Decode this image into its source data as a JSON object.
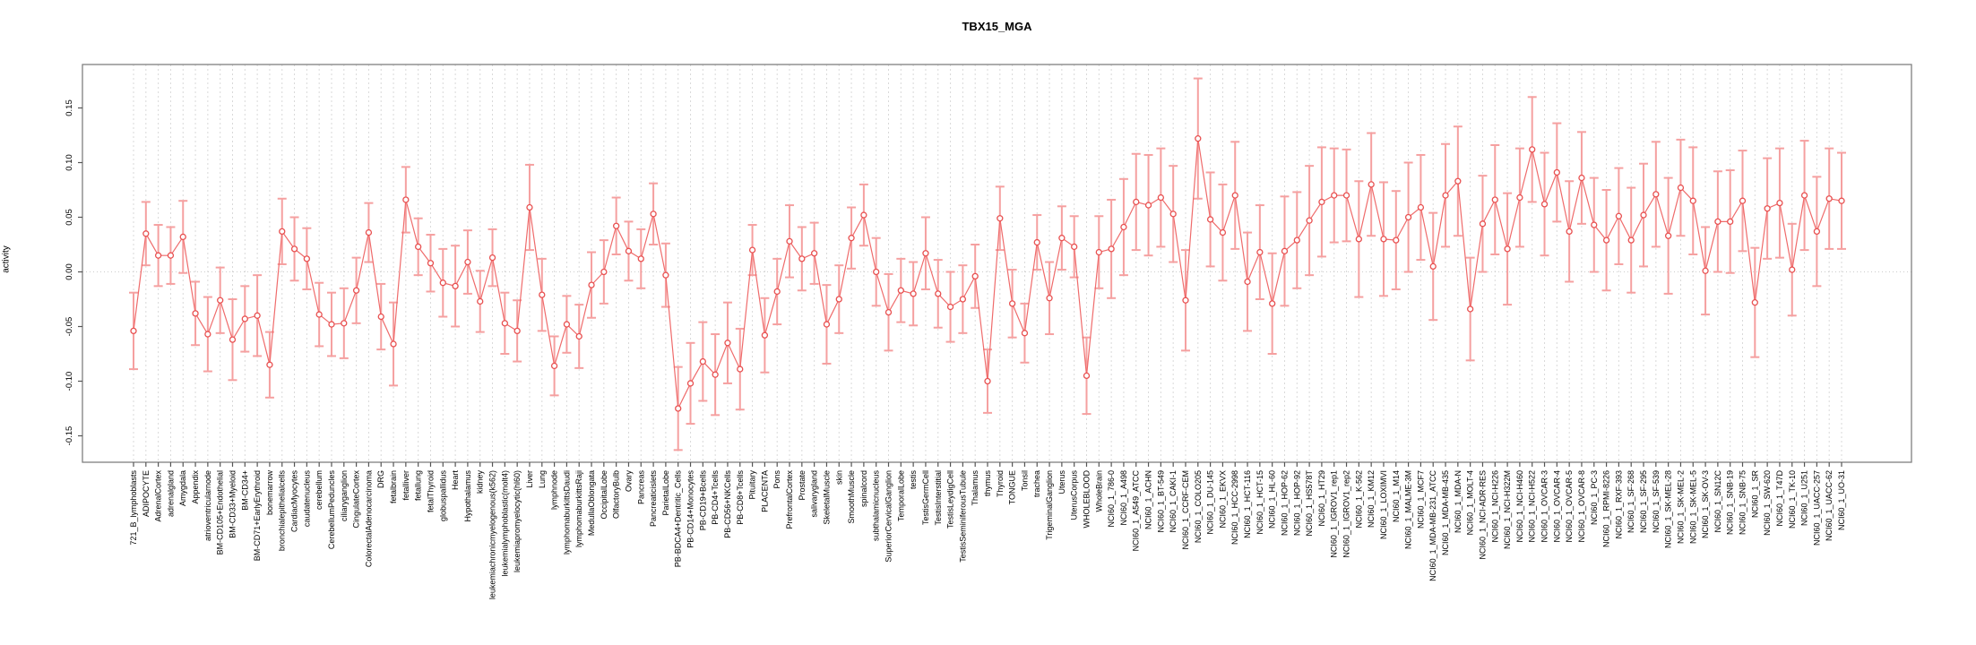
{
  "title": "TBX15_MGA",
  "ylabel": "activity",
  "chart_data": {
    "type": "scatter",
    "title": "TBX15_MGA",
    "xlabel": "",
    "ylabel": "activity",
    "ylim": [
      -0.175,
      0.19
    ],
    "yticks": [
      -0.15,
      -0.1,
      -0.05,
      0.0,
      0.05,
      0.1,
      0.15
    ],
    "grid": "vertical dashed gridline at every category; dotted horizontal line at 0",
    "legend_position": "none",
    "marker": "open-circle with connecting line and error bars",
    "point_color": "#e85151",
    "line_color": "#ef6b6b",
    "errorbar_color": "#f5a0a0",
    "box_color": "#808080",
    "gridline_color": "#d9d9d9",
    "categories": [
      "721_B_lymphoblasts",
      "ADIPOCYTE",
      "AdrenalCortex",
      "adrenalgland",
      "Amygdala",
      "Appendix",
      "atrioventricularnode",
      "BM-CD105+Endothelial",
      "BM-CD33+Myeloid",
      "BM-CD34+",
      "BM-CD71+EarlyErythroid",
      "bonemarrow",
      "bronchialepithelialcells",
      "CardiacMyocytes",
      "caudatenucleus",
      "cerebellum",
      "CerebellumPeduncles",
      "ciliaryganglion",
      "CingulateCortex",
      "ColorectalAdenocarcinoma",
      "DRG",
      "fetalbrain",
      "fetalliver",
      "fetallung",
      "fetalThyroid",
      "globuspallidus",
      "Heart",
      "Hypothalamus",
      "kidney",
      "leukemiachronicmyelogenous(k562)",
      "leukemialymphoblastic(molt4)",
      "leukemiapromyelocytic(hl60)",
      "Liver",
      "Lung",
      "lymphnode",
      "lymphomaburkittsDaudi",
      "lymphomaburkittsRaji",
      "MedullaOblongata",
      "OccipitalLobe",
      "OlfactoryBulb",
      "Ovary",
      "Pancreas",
      "Pancreaticislets",
      "ParietalLobe",
      "PB-BDCA4+Dentritic_Cells",
      "PB-CD14+Monocytes",
      "PB-CD19+Bcells",
      "PB-CD4+Tcells",
      "PB-CD56+NKCells",
      "PB-CD8+Tcells",
      "Pituitary",
      "PLACENTA",
      "Pons",
      "PrefrontalCortex",
      "Prostate",
      "salivarygland",
      "SkeletalMuscle",
      "skin",
      "SmoothMuscle",
      "spinalcord",
      "subthalamicnucleus",
      "SuperiorCervicalGanglion",
      "TemporalLobe",
      "testis",
      "TestisGermCell",
      "TestisInterstitial",
      "TestisLeydigCell",
      "TestisSeminiferousTubule",
      "Thalamus",
      "thymus",
      "Thyroid",
      "TONGUE",
      "Tonsil",
      "trachea",
      "TrigeminalGanglion",
      "Uterus",
      "UterusCorpus",
      "WHOLEBLOOD",
      "WholeBrain",
      "NCI60_1_786-0",
      "NCI60_1_A498",
      "NCI60_1_A549_ATCC",
      "NCI60_1_ACHN",
      "NCI60_1_BT-549",
      "NCI60_1_CAKI-1",
      "NCI60_1_CCRF-CEM",
      "NCI60_1_COLO205",
      "NCI60_1_DU-145",
      "NCI60_1_EKVX",
      "NCI60_1_HCC-2998",
      "NCI60_1_HCT-116",
      "NCI60_1_HCT-15",
      "NCI60_1_HL-60",
      "NCI60_1_HOP-62",
      "NCI60_1_HOP-92",
      "NCI60_1_HS578T",
      "NCI60_1_HT29",
      "NCI60_1_IGROV1_rep1",
      "NCI60_1_IGROV1_rep2",
      "NCI60_1_K-562",
      "NCI60_1_KM12",
      "NCI60_1_LOXIMVI",
      "NCI60_1_M14",
      "NCI60_1_MALME-3M",
      "NCI60_1_MCF7",
      "NCI60_1_MDA-MB-231_ATCC",
      "NCI60_1_MDA-MB-435",
      "NCI60_1_MDA-N",
      "NCI60_1_MOLT-4",
      "NCI60_1_NCI-ADR-RES",
      "NCI60_1_NCI-H226",
      "NCI60_1_NCI-H322M",
      "NCI60_1_NCI-H460",
      "NCI60_1_NCI-H522",
      "NCI60_1_OVCAR-3",
      "NCI60_1_OVCAR-4",
      "NCI60_1_OVCAR-5",
      "NCI60_1_OVCAR-8",
      "NCI60_1_PC-3",
      "NCI60_1_RPMI-8226",
      "NCI60_1_RXF-393",
      "NCI60_1_SF-268",
      "NCI60_1_SF-295",
      "NCI60_1_SF-539",
      "NCI60_1_SK-MEL-28",
      "NCI60_1_SK-MEL-2",
      "NCI60_1_SK-MEL-5",
      "NCI60_1_SK-OV-3",
      "NCI60_1_SN12C",
      "NCI60_1_SNB-19",
      "NCI60_1_SNB-75",
      "NCI60_1_SR",
      "NCI60_1_SW-620",
      "NCI60_1_T47D",
      "NCI60_1_TK-10",
      "NCI60_1_U251",
      "NCI60_1_UACC-257",
      "NCI60_1_UACC-62",
      "NCI60_1_UO-31"
    ],
    "values": [
      -0.054,
      0.035,
      0.015,
      0.015,
      0.032,
      -0.038,
      -0.057,
      -0.026,
      -0.062,
      -0.043,
      -0.04,
      -0.085,
      0.037,
      0.021,
      0.012,
      -0.039,
      -0.048,
      -0.047,
      -0.017,
      0.036,
      -0.041,
      -0.066,
      0.066,
      0.023,
      0.008,
      -0.01,
      -0.013,
      0.009,
      -0.027,
      0.013,
      -0.047,
      -0.054,
      0.059,
      -0.021,
      -0.086,
      -0.048,
      -0.059,
      -0.012,
      0.0,
      0.042,
      0.019,
      0.012,
      0.053,
      -0.003,
      -0.125,
      -0.102,
      -0.082,
      -0.094,
      -0.065,
      -0.089,
      0.02,
      -0.058,
      -0.018,
      0.028,
      0.012,
      0.017,
      -0.048,
      -0.025,
      0.031,
      0.052,
      0.0,
      -0.037,
      -0.017,
      -0.02,
      0.017,
      -0.02,
      -0.032,
      -0.025,
      -0.004,
      -0.1,
      0.049,
      -0.029,
      -0.056,
      0.027,
      -0.024,
      0.031,
      0.023,
      -0.095,
      0.018,
      0.021,
      0.041,
      0.064,
      0.061,
      0.068,
      0.053,
      -0.026,
      0.122,
      0.048,
      0.036,
      0.07,
      -0.009,
      0.018,
      -0.029,
      0.019,
      0.029,
      0.047,
      0.064,
      0.07,
      0.07,
      0.03,
      0.08,
      0.03,
      0.029,
      0.05,
      0.059,
      0.005,
      0.07,
      0.083,
      -0.034,
      0.044,
      0.066,
      0.021,
      0.068,
      0.112,
      0.062,
      0.091,
      0.037,
      0.086,
      0.043,
      0.029,
      0.051,
      0.029,
      0.052,
      0.071,
      0.033,
      0.077,
      0.065,
      0.001,
      0.046,
      0.046,
      0.065,
      -0.028,
      0.058,
      0.063,
      0.002,
      0.07,
      0.037,
      0.067,
      0.065
    ],
    "errors": [
      0.035,
      0.029,
      0.028,
      0.026,
      0.033,
      0.029,
      0.034,
      0.03,
      0.037,
      0.03,
      0.037,
      0.03,
      0.03,
      0.029,
      0.028,
      0.029,
      0.029,
      0.032,
      0.03,
      0.027,
      0.03,
      0.038,
      0.03,
      0.026,
      0.026,
      0.031,
      0.037,
      0.029,
      0.028,
      0.026,
      0.028,
      0.028,
      0.039,
      0.033,
      0.027,
      0.026,
      0.029,
      0.03,
      0.029,
      0.026,
      0.027,
      0.027,
      0.028,
      0.029,
      0.038,
      0.037,
      0.036,
      0.037,
      0.037,
      0.037,
      0.023,
      0.034,
      0.03,
      0.033,
      0.029,
      0.028,
      0.036,
      0.031,
      0.028,
      0.028,
      0.031,
      0.035,
      0.029,
      0.029,
      0.033,
      0.031,
      0.032,
      0.031,
      0.029,
      0.029,
      0.029,
      0.031,
      0.027,
      0.025,
      0.033,
      0.029,
      0.028,
      0.035,
      0.033,
      0.045,
      0.044,
      0.044,
      0.046,
      0.045,
      0.044,
      0.046,
      0.055,
      0.043,
      0.044,
      0.049,
      0.045,
      0.043,
      0.046,
      0.05,
      0.044,
      0.05,
      0.05,
      0.043,
      0.042,
      0.053,
      0.047,
      0.052,
      0.045,
      0.05,
      0.048,
      0.049,
      0.047,
      0.05,
      0.047,
      0.044,
      0.05,
      0.051,
      0.045,
      0.048,
      0.047,
      0.045,
      0.046,
      0.042,
      0.043,
      0.046,
      0.044,
      0.048,
      0.047,
      0.048,
      0.053,
      0.044,
      0.049,
      0.04,
      0.046,
      0.047,
      0.046,
      0.05,
      0.046,
      0.05,
      0.042,
      0.05,
      0.05,
      0.046,
      0.044
    ]
  }
}
